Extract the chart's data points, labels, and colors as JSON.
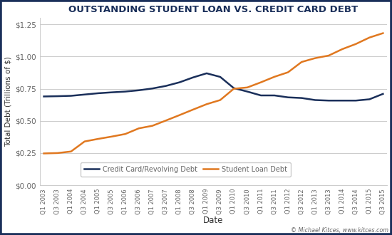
{
  "title": "OUTSTANDING STUDENT LOAN VS. CREDIT CARD DEBT",
  "xlabel": "Date",
  "ylabel": "Total Debt (Trillions of $)",
  "plot_bg_color": "#ffffff",
  "fig_bg_color": "#ffffff",
  "outer_border_color": "#1a2f5a",
  "tick_label_color": "#666666",
  "axis_label_color": "#333333",
  "title_color": "#1a2f5a",
  "x_labels": [
    "Q1 2003",
    "Q3 2003",
    "Q1 2004",
    "Q3 2004",
    "Q1 2005",
    "Q3 2005",
    "Q1 2006",
    "Q3 2006",
    "Q1 2007",
    "Q3 2007",
    "Q1 2008",
    "Q3 2008",
    "Q1 2009",
    "Q3 2009",
    "Q1 2010",
    "Q3 2010",
    "Q1 2011",
    "Q3 2011",
    "Q1 2012",
    "Q3 2012",
    "Q1 2013",
    "Q3 2013",
    "Q1 2014",
    "Q3 2014",
    "Q1 2015",
    "Q3 2015"
  ],
  "credit_card_debt": [
    0.69,
    0.692,
    0.695,
    0.705,
    0.715,
    0.722,
    0.728,
    0.738,
    0.752,
    0.772,
    0.8,
    0.838,
    0.87,
    0.842,
    0.755,
    0.728,
    0.698,
    0.698,
    0.683,
    0.678,
    0.662,
    0.658,
    0.658,
    0.658,
    0.668,
    0.71
  ],
  "student_loan_debt": [
    0.247,
    0.25,
    0.262,
    0.34,
    0.36,
    0.378,
    0.398,
    0.442,
    0.462,
    0.503,
    0.545,
    0.588,
    0.63,
    0.662,
    0.75,
    0.76,
    0.8,
    0.843,
    0.878,
    0.958,
    0.988,
    1.008,
    1.058,
    1.098,
    1.148,
    1.182
  ],
  "credit_card_color": "#1a2f5a",
  "student_loan_color": "#e07820",
  "ylim": [
    0.0,
    1.3
  ],
  "ytick_vals": [
    0.0,
    0.25,
    0.5,
    0.75,
    1.0,
    1.25
  ],
  "ytick_labels": [
    "$0.00",
    "$0.25",
    "$0.50",
    "$0.75",
    "$1.00",
    "$1.25"
  ],
  "grid_color": "#cccccc",
  "legend_label_cc": "Credit Card/Revolving Debt",
  "legend_label_sl": "Student Loan Debt",
  "credit_line": "© Michael Kitces, www.kitces.com",
  "fig_width": 5.5,
  "fig_height": 3.3,
  "dpi": 100
}
